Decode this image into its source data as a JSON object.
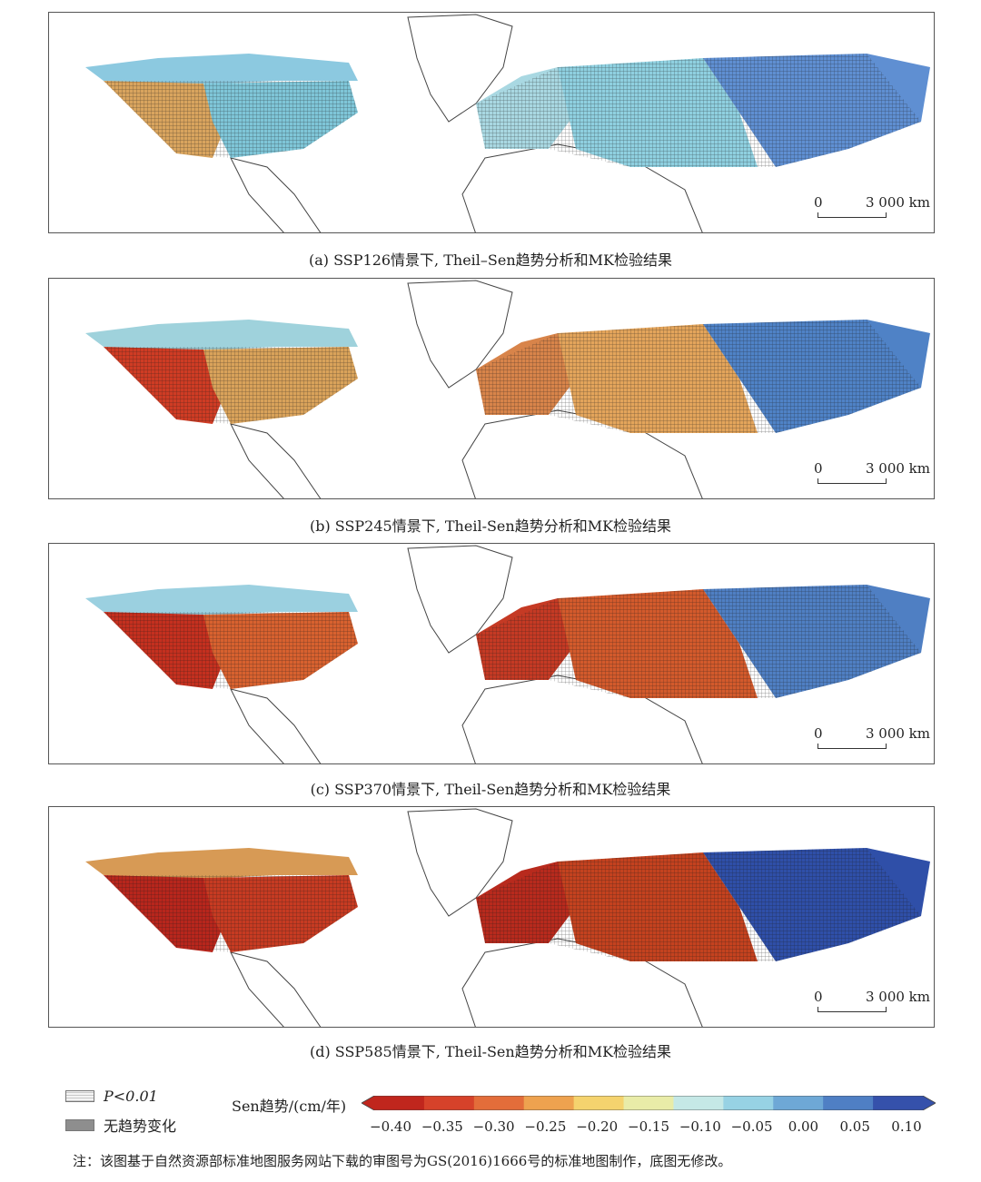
{
  "panels": [
    {
      "caption": "(a) SSP126情景下, Theil–Sen趋势分析和MK检验结果",
      "scale_zero": "0",
      "scale_dist": "3 000 km",
      "na_west": "#d9a45e",
      "na_east": "#7fc6d8",
      "na_north": "#8cc9e0",
      "eu_west": "#a9d8e2",
      "eu_central": "#8fd0e0",
      "eu_east": "#5f8fd2"
    },
    {
      "caption": "(b) SSP245情景下, Theil-Sen趋势分析和MK检验结果",
      "scale_zero": "0",
      "scale_dist": "3 000 km",
      "na_west": "#cf3c24",
      "na_east": "#d9a25a",
      "na_north": "#9fd2dc",
      "eu_west": "#d8844a",
      "eu_central": "#e3a45b",
      "eu_east": "#4f82c6"
    },
    {
      "caption": "(c) SSP370情景下, Theil-Sen趋势分析和MK检验结果",
      "scale_zero": "0",
      "scale_dist": "3 000 km",
      "na_west": "#c5301f",
      "na_east": "#d8612f",
      "na_north": "#9bd0e0",
      "eu_west": "#c53a24",
      "eu_central": "#d35a2c",
      "eu_east": "#4f7fc3"
    },
    {
      "caption": "(d) SSP585情景下, Theil-Sen趋势分析和MK检验结果",
      "scale_zero": "0",
      "scale_dist": "3 000 km",
      "na_west": "#b8261c",
      "na_east": "#c73b22",
      "na_north": "#d79a55",
      "eu_west": "#b82a1d",
      "eu_central": "#c4421f",
      "eu_east": "#2f4fa8"
    }
  ],
  "legend": {
    "p_label": "P<0.01",
    "no_trend_label": "无趋势变化",
    "colorbar_title": "Sen趋势/(cm/年)",
    "ticks": [
      "−0.40",
      "−0.35",
      "−0.30",
      "−0.25",
      "−0.20",
      "−0.15",
      "−0.10",
      "−0.05",
      "0.00",
      "0.05",
      "0.10"
    ],
    "colors": [
      "#c0261d",
      "#d6422a",
      "#e36d3a",
      "#eea24f",
      "#f5d36e",
      "#e9eca8",
      "#c5e8e6",
      "#97d2e4",
      "#6ea8d6",
      "#4f7fc4",
      "#3551ab"
    ]
  },
  "note": "注：该图基于自然资源部标准地图服务网站下载的审图号为GS(2016)1666号的标准地图制作，底图无修改。"
}
